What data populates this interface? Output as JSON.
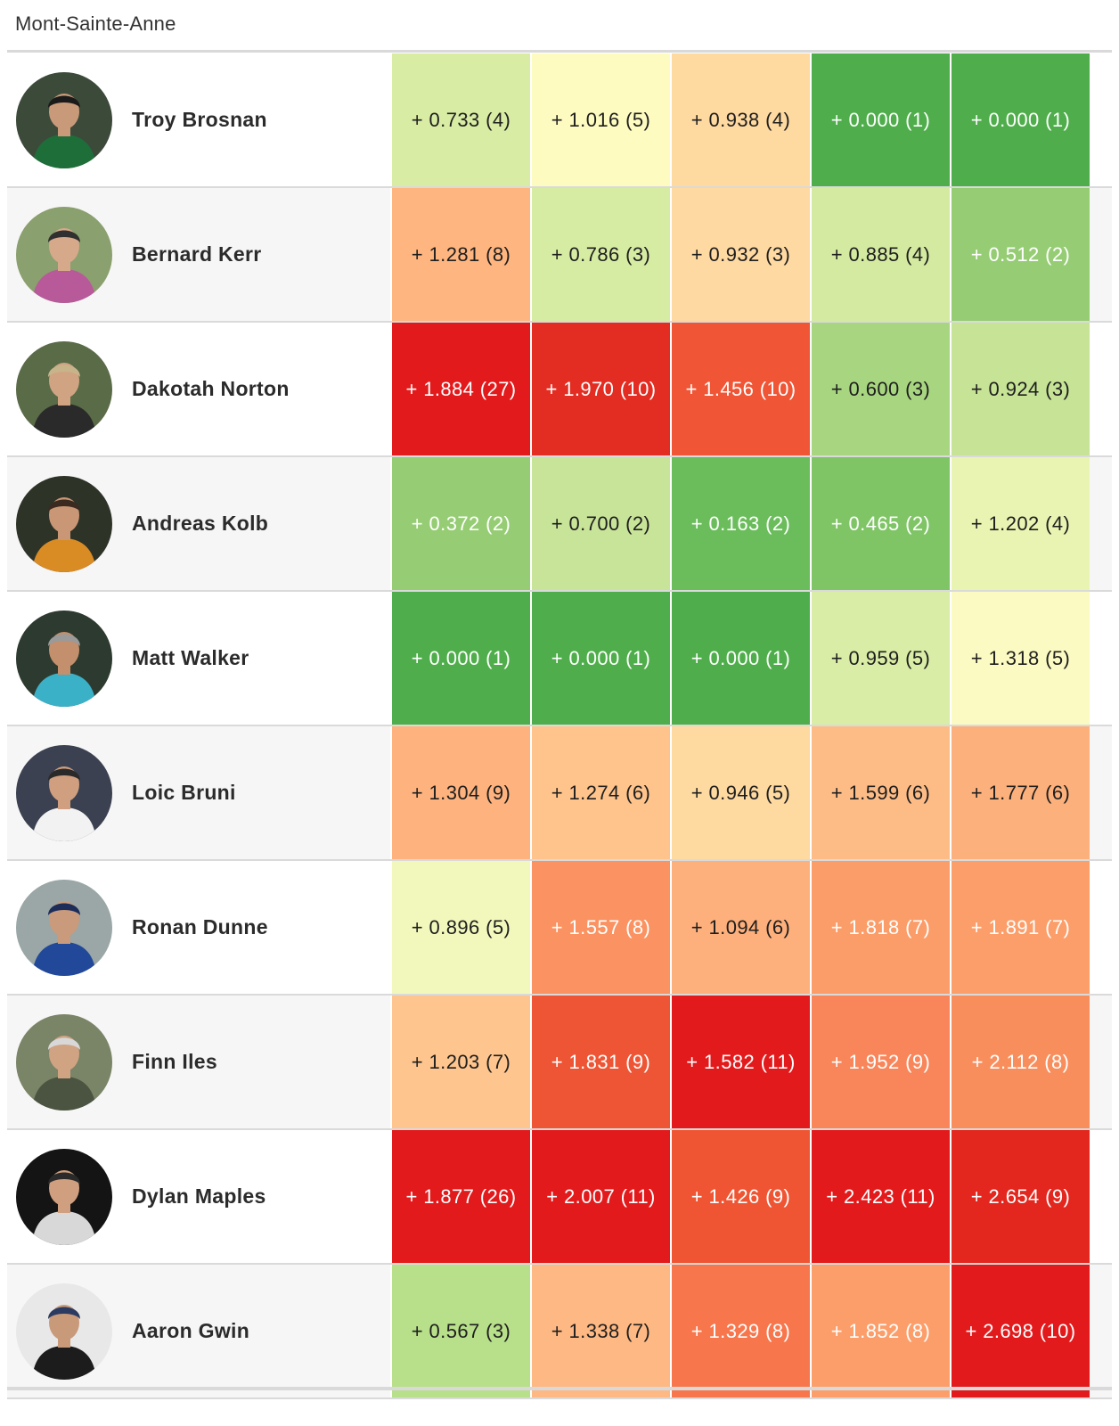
{
  "title": "Mont-Sainte-Anne",
  "rows": [
    {
      "name": "Troy Brosnan",
      "avatar": {
        "icon": "rider-photo-icon",
        "bg": "#3c4a3a",
        "skin": "#c99a7a",
        "top": "#1e6e3a",
        "helmet": "#1a1a1a"
      },
      "cells": [
        {
          "text": "+ 0.733 (4)",
          "color": "#d8eca4"
        },
        {
          "text": "+ 1.016 (5)",
          "color": "#fdfbc0"
        },
        {
          "text": "+ 0.938 (4)",
          "color": "#fed9a0"
        },
        {
          "text": "+ 0.000 (1)",
          "color": "#4fae4b"
        },
        {
          "text": "+ 0.000 (1)",
          "color": "#4fae4b"
        }
      ]
    },
    {
      "name": "Bernard Kerr",
      "avatar": {
        "icon": "rider-photo-icon",
        "bg": "#8aa06e",
        "skin": "#d7a98b",
        "top": "#b85a9a",
        "helmet": "#303030"
      },
      "cells": [
        {
          "text": "+ 1.281 (8)",
          "color": "#feb57f"
        },
        {
          "text": "+ 0.786 (3)",
          "color": "#d7eca3"
        },
        {
          "text": "+ 0.932 (3)",
          "color": "#fed9a1"
        },
        {
          "text": "+ 0.885 (4)",
          "color": "#d4eaa0"
        },
        {
          "text": "+ 0.512 (2)",
          "color": "#96cd74"
        }
      ]
    },
    {
      "name": "Dakotah Norton",
      "avatar": {
        "icon": "rider-photo-icon",
        "bg": "#5a6b48",
        "skin": "#d0a482",
        "top": "#2a2a2a",
        "helmet": "#c8b48a"
      },
      "cells": [
        {
          "text": "+ 1.884 (27)",
          "color": "#e31a1c"
        },
        {
          "text": "+ 1.970 (10)",
          "color": "#e32d22"
        },
        {
          "text": "+ 1.456 (10)",
          "color": "#f05535"
        },
        {
          "text": "+ 0.600 (3)",
          "color": "#a8d680"
        },
        {
          "text": "+ 0.924 (3)",
          "color": "#c6e396"
        }
      ]
    },
    {
      "name": "Andreas Kolb",
      "avatar": {
        "icon": "rider-photo-icon",
        "bg": "#2e3328",
        "skin": "#c99776",
        "top": "#d98b24",
        "helmet": "#3a2a20"
      },
      "cells": [
        {
          "text": "+ 0.372 (2)",
          "color": "#96cd74"
        },
        {
          "text": "+ 0.700 (2)",
          "color": "#c8e499"
        },
        {
          "text": "+ 0.163 (2)",
          "color": "#6bbd5c"
        },
        {
          "text": "+ 0.465 (2)",
          "color": "#7fc566"
        },
        {
          "text": "+ 1.202 (4)",
          "color": "#eaf4b2"
        }
      ]
    },
    {
      "name": "Matt Walker",
      "avatar": {
        "icon": "rider-photo-icon",
        "bg": "#2d3a30",
        "skin": "#c38f6c",
        "top": "#3bb1c8",
        "helmet": "#9a9a9a"
      },
      "cells": [
        {
          "text": "+ 0.000 (1)",
          "color": "#4fae4b"
        },
        {
          "text": "+ 0.000 (1)",
          "color": "#4fae4b"
        },
        {
          "text": "+ 0.000 (1)",
          "color": "#4fae4b"
        },
        {
          "text": "+ 0.959 (5)",
          "color": "#d9eda6"
        },
        {
          "text": "+ 1.318 (5)",
          "color": "#fbfac2"
        }
      ]
    },
    {
      "name": "Loic Bruni",
      "avatar": {
        "icon": "rider-photo-icon",
        "bg": "#3b4150",
        "skin": "#cf9f7f",
        "top": "#f2f2f2",
        "helmet": "#2a2a2a"
      },
      "cells": [
        {
          "text": "+ 1.304 (9)",
          "color": "#feb37e"
        },
        {
          "text": "+ 1.274 (6)",
          "color": "#fec48c"
        },
        {
          "text": "+ 0.946 (5)",
          "color": "#fed9a0"
        },
        {
          "text": "+ 1.599 (6)",
          "color": "#fdbc86"
        },
        {
          "text": "+ 1.777 (6)",
          "color": "#fcb07b"
        }
      ]
    },
    {
      "name": "Ronan Dunne",
      "avatar": {
        "icon": "rider-photo-icon",
        "bg": "#9aa7a6",
        "skin": "#c99a7c",
        "top": "#22489a",
        "helmet": "#1c2d5a"
      },
      "cells": [
        {
          "text": "+ 0.896 (5)",
          "color": "#f2f8bc"
        },
        {
          "text": "+ 1.557 (8)",
          "color": "#fa9361"
        },
        {
          "text": "+ 1.094 (6)",
          "color": "#fdb07c"
        },
        {
          "text": "+ 1.818 (7)",
          "color": "#fb9d69"
        },
        {
          "text": "+ 1.891 (7)",
          "color": "#fc9e6a"
        }
      ]
    },
    {
      "name": "Finn Iles",
      "avatar": {
        "icon": "rider-photo-icon",
        "bg": "#7a8466",
        "skin": "#d0a383",
        "top": "#4a5440",
        "helmet": "#d8d8d8"
      },
      "cells": [
        {
          "text": "+ 1.203 (7)",
          "color": "#fec58e"
        },
        {
          "text": "+ 1.831 (9)",
          "color": "#ee5535"
        },
        {
          "text": "+ 1.582 (11)",
          "color": "#e31a1c"
        },
        {
          "text": "+ 1.952 (9)",
          "color": "#f8865a"
        },
        {
          "text": "+ 2.112 (8)",
          "color": "#f98e5d"
        }
      ]
    },
    {
      "name": "Dylan Maples",
      "avatar": {
        "icon": "rider-photo-icon",
        "bg": "#141414",
        "skin": "#cf9f7f",
        "top": "#d8d8d8",
        "helmet": "#2a2a2a"
      },
      "cells": [
        {
          "text": "+ 1.877 (26)",
          "color": "#e31a1c"
        },
        {
          "text": "+ 2.007 (11)",
          "color": "#e31a1c"
        },
        {
          "text": "+ 1.426 (9)",
          "color": "#ef5533"
        },
        {
          "text": "+ 2.423 (11)",
          "color": "#e31a1c"
        },
        {
          "text": "+ 2.654 (9)",
          "color": "#e3261e"
        }
      ]
    },
    {
      "name": "Aaron Gwin",
      "avatar": {
        "icon": "rider-photo-icon",
        "bg": "#e8e8e8",
        "skin": "#c89a7a",
        "top": "#1c1c1c",
        "helmet": "#2a3a60"
      },
      "cells": [
        {
          "text": "+ 0.567 (3)",
          "color": "#b8df8a"
        },
        {
          "text": "+ 1.338 (7)",
          "color": "#feb883"
        },
        {
          "text": "+ 1.329 (8)",
          "color": "#f7764c"
        },
        {
          "text": "+ 1.852 (8)",
          "color": "#fc9e6a"
        },
        {
          "text": "+ 2.698 (10)",
          "color": "#e31a1c"
        }
      ]
    }
  ]
}
